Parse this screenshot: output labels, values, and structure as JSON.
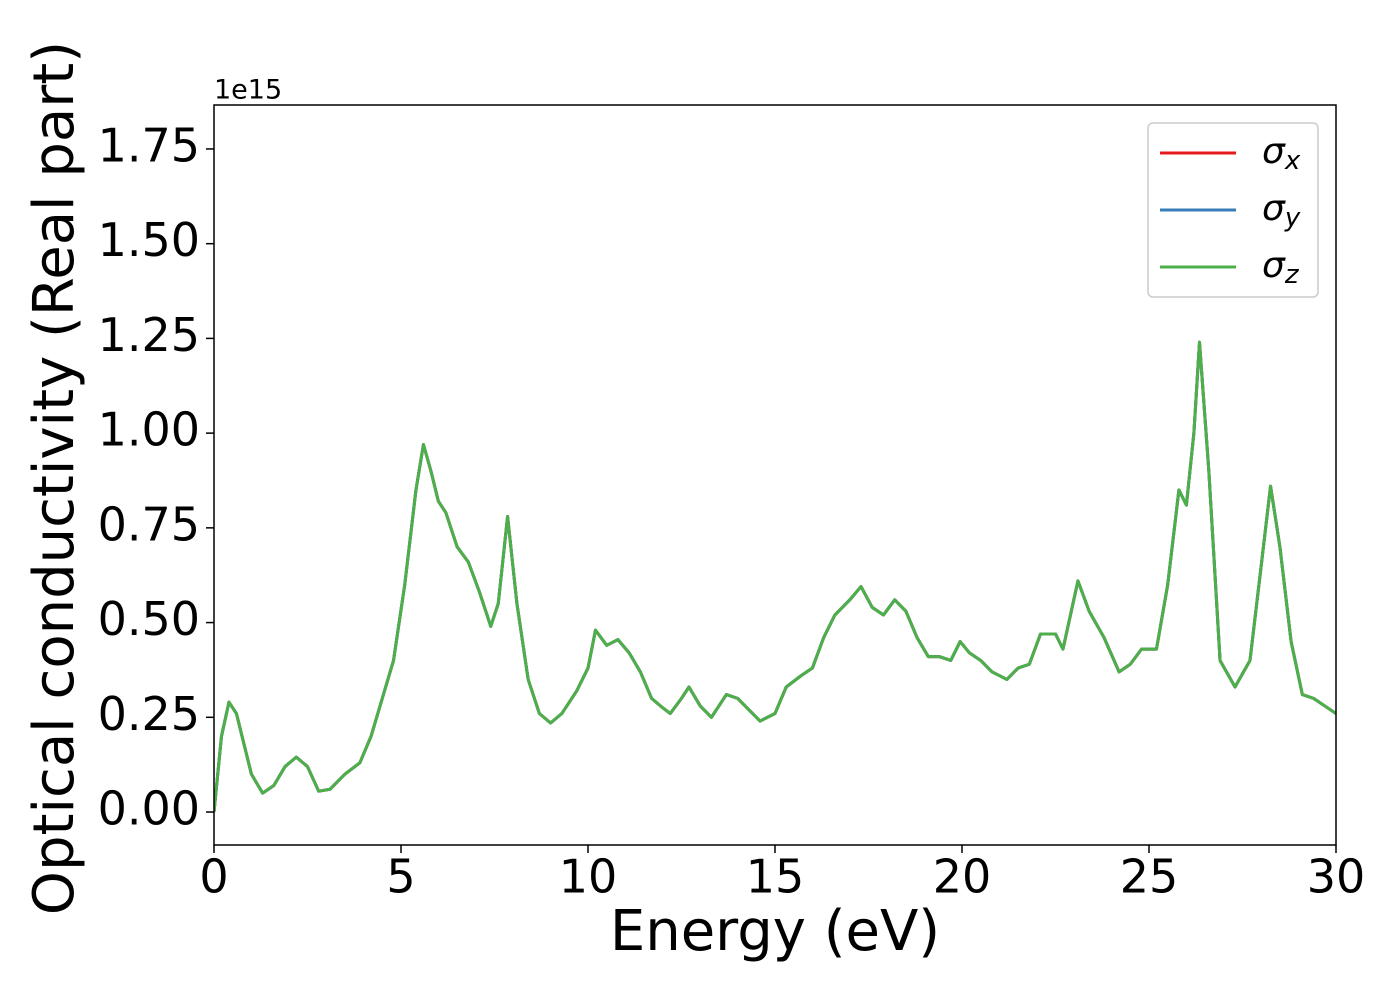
{
  "chart_data": {
    "type": "line",
    "xlabel": "Energy (eV)",
    "ylabel": "Optical conductivity (Real part)",
    "y_offset_text": "1e15",
    "xlim": [
      0,
      30
    ],
    "xticks": [
      0,
      5,
      10,
      15,
      20,
      25,
      30
    ],
    "ylim": [
      -0.087,
      1.866
    ],
    "yticks": [
      {
        "value": 0,
        "label": "0.00"
      },
      {
        "value": 0.25,
        "label": "0.25"
      },
      {
        "value": 0.5,
        "label": "0.50"
      },
      {
        "value": 0.75,
        "label": "0.75"
      },
      {
        "value": 1.0,
        "label": "1.00"
      },
      {
        "value": 1.25,
        "label": "1.25"
      },
      {
        "value": 1.5,
        "label": "1.50"
      },
      {
        "value": 1.75,
        "label": "1.75"
      }
    ],
    "legend": "upper right",
    "grid": false,
    "x": [
      0,
      0.2,
      0.4,
      0.6,
      0.8,
      1.0,
      1.3,
      1.6,
      1.9,
      2.2,
      2.5,
      2.8,
      3.1,
      3.5,
      3.9,
      4.2,
      4.5,
      4.8,
      5.1,
      5.4,
      5.6,
      5.8,
      6.0,
      6.2,
      6.5,
      6.8,
      7.1,
      7.4,
      7.6,
      7.85,
      8.1,
      8.4,
      8.7,
      9.0,
      9.3,
      9.7,
      10.0,
      10.2,
      10.5,
      10.8,
      11.1,
      11.4,
      11.7,
      12.0,
      12.2,
      12.5,
      12.7,
      13.0,
      13.3,
      13.7,
      14.0,
      14.3,
      14.6,
      15.0,
      15.3,
      15.7,
      16.0,
      16.3,
      16.6,
      17.0,
      17.3,
      17.6,
      17.9,
      18.2,
      18.5,
      18.8,
      19.1,
      19.4,
      19.7,
      19.95,
      20.2,
      20.5,
      20.8,
      21.2,
      21.5,
      21.8,
      22.1,
      22.5,
      22.7,
      23.1,
      23.4,
      23.8,
      24.2,
      24.5,
      24.8,
      25.2,
      25.5,
      25.8,
      26.0,
      26.2,
      26.35,
      26.6,
      26.9,
      27.3,
      27.7,
      28.0,
      28.25,
      28.5,
      28.8,
      29.1,
      29.4,
      29.7,
      30.0
    ],
    "series": [
      {
        "name": "σx",
        "color": "#e41a1c",
        "values": [
          0,
          0.2,
          0.29,
          0.26,
          0.18,
          0.1,
          0.05,
          0.07,
          0.12,
          0.145,
          0.12,
          0.055,
          0.06,
          0.1,
          0.13,
          0.2,
          0.3,
          0.4,
          0.6,
          0.85,
          0.97,
          0.9,
          0.82,
          0.79,
          0.7,
          0.66,
          0.58,
          0.49,
          0.55,
          0.78,
          0.55,
          0.35,
          0.26,
          0.235,
          0.26,
          0.32,
          0.38,
          0.48,
          0.44,
          0.455,
          0.42,
          0.37,
          0.3,
          0.275,
          0.26,
          0.3,
          0.33,
          0.28,
          0.25,
          0.31,
          0.3,
          0.27,
          0.24,
          0.26,
          0.33,
          0.36,
          0.38,
          0.46,
          0.52,
          0.56,
          0.595,
          0.54,
          0.52,
          0.56,
          0.53,
          0.46,
          0.41,
          0.41,
          0.4,
          0.45,
          0.42,
          0.4,
          0.37,
          0.35,
          0.38,
          0.39,
          0.47,
          0.47,
          0.43,
          0.61,
          0.53,
          0.46,
          0.37,
          0.39,
          0.43,
          0.43,
          0.6,
          0.85,
          0.81,
          1.0,
          1.24,
          0.9,
          0.4,
          0.33,
          0.4,
          0.65,
          0.86,
          0.7,
          0.45,
          0.31,
          0.3,
          0.28,
          0.26
        ]
      },
      {
        "name": "σy",
        "color": "#377eb8",
        "values": [
          0,
          0.2,
          0.29,
          0.26,
          0.18,
          0.1,
          0.05,
          0.07,
          0.12,
          0.145,
          0.12,
          0.055,
          0.06,
          0.1,
          0.13,
          0.2,
          0.3,
          0.4,
          0.6,
          0.85,
          0.97,
          0.9,
          0.82,
          0.79,
          0.7,
          0.66,
          0.58,
          0.49,
          0.55,
          0.78,
          0.55,
          0.35,
          0.26,
          0.235,
          0.26,
          0.32,
          0.38,
          0.48,
          0.44,
          0.455,
          0.42,
          0.37,
          0.3,
          0.275,
          0.26,
          0.3,
          0.33,
          0.28,
          0.25,
          0.31,
          0.3,
          0.27,
          0.24,
          0.26,
          0.33,
          0.36,
          0.38,
          0.46,
          0.52,
          0.56,
          0.595,
          0.54,
          0.52,
          0.56,
          0.53,
          0.46,
          0.41,
          0.41,
          0.4,
          0.45,
          0.42,
          0.4,
          0.37,
          0.35,
          0.38,
          0.39,
          0.47,
          0.47,
          0.43,
          0.61,
          0.53,
          0.46,
          0.37,
          0.39,
          0.43,
          0.43,
          0.6,
          0.85,
          0.81,
          1.0,
          1.24,
          0.9,
          0.4,
          0.33,
          0.4,
          0.65,
          0.86,
          0.7,
          0.45,
          0.31,
          0.3,
          0.28,
          0.26
        ]
      },
      {
        "name": "σz",
        "color": "#4daf4a",
        "values": [
          0,
          0.2,
          0.29,
          0.26,
          0.18,
          0.1,
          0.05,
          0.07,
          0.12,
          0.145,
          0.12,
          0.055,
          0.06,
          0.1,
          0.13,
          0.2,
          0.3,
          0.4,
          0.6,
          0.85,
          0.97,
          0.9,
          0.82,
          0.79,
          0.7,
          0.66,
          0.58,
          0.49,
          0.55,
          0.78,
          0.55,
          0.35,
          0.26,
          0.235,
          0.26,
          0.32,
          0.38,
          0.48,
          0.44,
          0.455,
          0.42,
          0.37,
          0.3,
          0.275,
          0.26,
          0.3,
          0.33,
          0.28,
          0.25,
          0.31,
          0.3,
          0.27,
          0.24,
          0.26,
          0.33,
          0.36,
          0.38,
          0.46,
          0.52,
          0.56,
          0.595,
          0.54,
          0.52,
          0.56,
          0.53,
          0.46,
          0.41,
          0.41,
          0.4,
          0.45,
          0.42,
          0.4,
          0.37,
          0.35,
          0.38,
          0.39,
          0.47,
          0.47,
          0.43,
          0.61,
          0.53,
          0.46,
          0.37,
          0.39,
          0.43,
          0.43,
          0.6,
          0.85,
          0.81,
          1.0,
          1.24,
          0.9,
          0.4,
          0.33,
          0.4,
          0.65,
          0.86,
          0.7,
          0.45,
          0.31,
          0.3,
          0.28,
          0.26
        ]
      }
    ]
  }
}
